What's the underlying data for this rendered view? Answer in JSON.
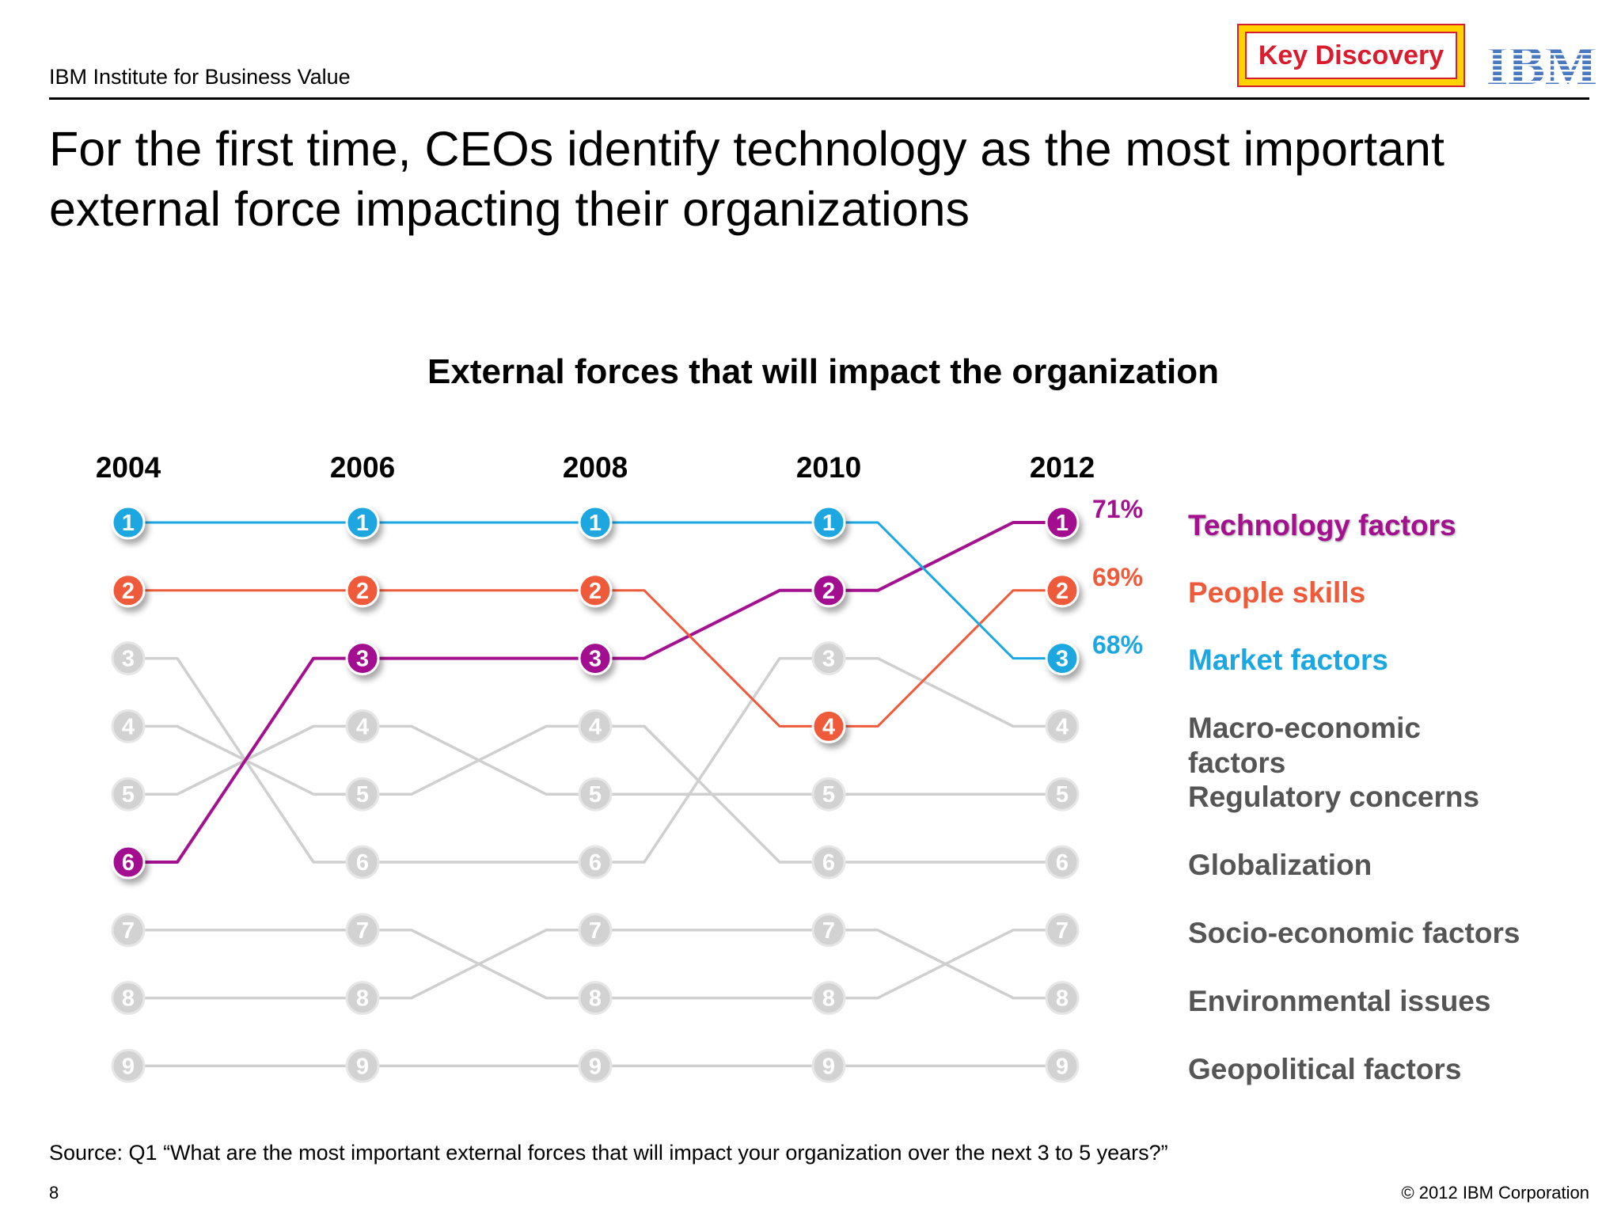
{
  "header": {
    "org": "IBM Institute for Business Value",
    "badge": "Key Discovery",
    "logo": "IBM"
  },
  "title": "For the first time, CEOs identify technology as the most important external force impacting their organizations",
  "colors": {
    "technology": "#a3118f",
    "people": "#ef5a3a",
    "market": "#1ba7e1",
    "other": "#cfcfcf",
    "legend_other": "#555555",
    "badge_red": "#d81e2e",
    "badge_yellow": "#ffd200",
    "ibm_blue": "#4a78c0"
  },
  "chart_data": {
    "type": "line",
    "subtype": "bump-chart (rank)",
    "title": "External forces that will impact the organization",
    "x": [
      "2004",
      "2006",
      "2008",
      "2010",
      "2012"
    ],
    "ranks": [
      1,
      2,
      3,
      4,
      5,
      6,
      7,
      8,
      9
    ],
    "y_axis": "rank, 1 at top",
    "series": [
      {
        "name": "Technology factors",
        "color": "#a3118f",
        "ranks": [
          6,
          3,
          3,
          2,
          1
        ],
        "label_2012": "71%",
        "highlight": true
      },
      {
        "name": "People skills",
        "color": "#ef5a3a",
        "ranks": [
          2,
          2,
          2,
          4,
          2
        ],
        "label_2012": "69%",
        "highlight": true
      },
      {
        "name": "Market factors",
        "color": "#1ba7e1",
        "ranks": [
          1,
          1,
          1,
          1,
          3
        ],
        "label_2012": "68%",
        "highlight": true
      },
      {
        "name": "Macro-economic factors",
        "color": "#cfcfcf",
        "ranks": [
          3,
          6,
          6,
          3,
          4
        ]
      },
      {
        "name": "Regulatory concerns",
        "color": "#cfcfcf",
        "ranks": [
          5,
          4,
          5,
          5,
          5
        ]
      },
      {
        "name": "Globalization",
        "color": "#cfcfcf",
        "ranks": [
          4,
          5,
          4,
          6,
          6
        ]
      },
      {
        "name": "Socio-economic factors",
        "color": "#cfcfcf",
        "ranks": [
          7,
          7,
          8,
          8,
          7
        ]
      },
      {
        "name": "Environmental issues",
        "color": "#cfcfcf",
        "ranks": [
          8,
          8,
          7,
          7,
          8
        ]
      },
      {
        "name": "Geopolitical factors",
        "color": "#cfcfcf",
        "ranks": [
          9,
          9,
          9,
          9,
          9
        ]
      }
    ],
    "legend": [
      "Technology factors",
      "People skills",
      "Market factors",
      "Macro-economic",
      "factors",
      "Regulatory concerns",
      "Globalization",
      "Socio-economic factors",
      "Environmental issues",
      "Geopolitical factors"
    ],
    "legend_placement": "right"
  },
  "footer": {
    "source": "Source:  Q1 “What are the most important external forces that will impact your organization over the next 3 to 5 years?”",
    "page": "8",
    "copyright": "© 2012 IBM Corporation"
  }
}
